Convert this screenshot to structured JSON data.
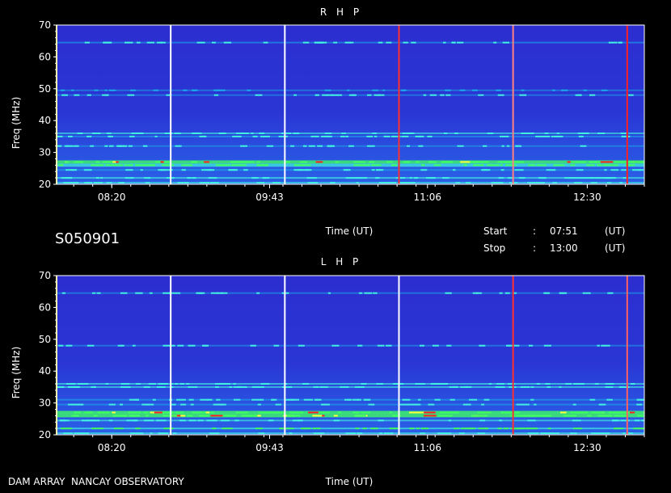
{
  "header": {
    "identifier": "S050901",
    "start_label": "Start",
    "stop_label": "Stop",
    "colon": ":",
    "start_time": "07:51",
    "stop_time": "13:00",
    "unit": "(UT)"
  },
  "footer": {
    "observatory": "DAM ARRAY  NANCAY OBSERVATORY"
  },
  "colors": {
    "background": "#000000",
    "low": "#2b2fc8",
    "mid": "#1aa8e8",
    "cyan": "#40f0e0",
    "green": "#40ff60",
    "yellow": "#ffff40",
    "red": "#ff2020",
    "white": "#ffffff"
  },
  "chart_data": [
    {
      "type": "heatmap",
      "title": "R H P",
      "xlabel": "Time (UT)",
      "ylabel": "Freq (MHz)",
      "xlim": [
        "07:51",
        "13:00"
      ],
      "ylim": [
        20,
        70
      ],
      "x_ticks": [
        "08:20",
        "09:43",
        "11:06",
        "12:30"
      ],
      "y_ticks": [
        20,
        30,
        40,
        50,
        60,
        70
      ],
      "time_markers": [
        {
          "time": "07:51",
          "color": "#ffff60"
        },
        {
          "time": "08:51",
          "color": "#ffffff"
        },
        {
          "time": "09:51",
          "color": "#ffffff"
        },
        {
          "time": "10:51",
          "color": "#ff3030"
        },
        {
          "time": "11:51",
          "color": "#ff8080"
        },
        {
          "time": "12:51",
          "color": "#ff2020"
        }
      ],
      "emission_bands": [
        {
          "freq": 64.5,
          "level": 0.45
        },
        {
          "freq": 49.5,
          "level": 0.3
        },
        {
          "freq": 48,
          "level": 0.35
        },
        {
          "freq": 36,
          "level": 0.55
        },
        {
          "freq": 35,
          "level": 0.5
        },
        {
          "freq": 32,
          "level": 0.4
        },
        {
          "freq": 27,
          "level": 0.85
        },
        {
          "freq": 26,
          "level": 0.75
        },
        {
          "freq": 24.5,
          "level": 0.5
        },
        {
          "freq": 22,
          "level": 0.6
        },
        {
          "freq": 20.5,
          "level": 0.55
        }
      ]
    },
    {
      "type": "heatmap",
      "title": "L H P",
      "xlabel": "Time (UT)",
      "ylabel": "Freq (MHz)",
      "xlim": [
        "07:51",
        "13:00"
      ],
      "ylim": [
        20,
        70
      ],
      "x_ticks": [
        "08:20",
        "09:43",
        "11:06",
        "12:30"
      ],
      "y_ticks": [
        20,
        30,
        40,
        50,
        60,
        70
      ],
      "time_markers": [
        {
          "time": "07:51",
          "color": "#ffff60"
        },
        {
          "time": "08:51",
          "color": "#ffffff"
        },
        {
          "time": "09:51",
          "color": "#ffffff"
        },
        {
          "time": "10:51",
          "color": "#ffffff"
        },
        {
          "time": "11:51",
          "color": "#ff3030"
        },
        {
          "time": "12:51",
          "color": "#ff6060"
        }
      ],
      "emission_bands": [
        {
          "freq": 64.5,
          "level": 0.4
        },
        {
          "freq": 48,
          "level": 0.35
        },
        {
          "freq": 36,
          "level": 0.6
        },
        {
          "freq": 35,
          "level": 0.55
        },
        {
          "freq": 31,
          "level": 0.5
        },
        {
          "freq": 29.5,
          "level": 0.45
        },
        {
          "freq": 27,
          "level": 0.9
        },
        {
          "freq": 26,
          "level": 0.85
        },
        {
          "freq": 24.5,
          "level": 0.55
        },
        {
          "freq": 22,
          "level": 0.65
        },
        {
          "freq": 20.5,
          "level": 0.6
        }
      ]
    }
  ]
}
